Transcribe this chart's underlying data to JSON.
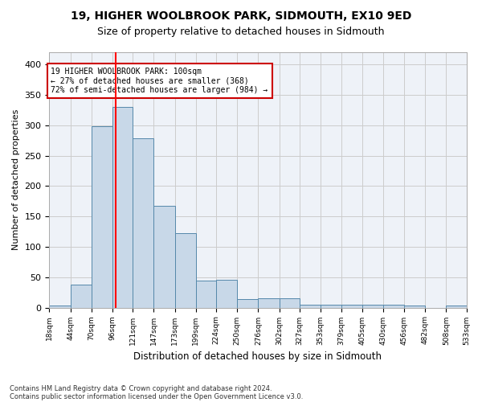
{
  "title1": "19, HIGHER WOOLBROOK PARK, SIDMOUTH, EX10 9ED",
  "title2": "Size of property relative to detached houses in Sidmouth",
  "xlabel": "Distribution of detached houses by size in Sidmouth",
  "ylabel": "Number of detached properties",
  "bar_color": "#c8d8e8",
  "bar_edge_color": "#5588aa",
  "grid_color": "#cccccc",
  "bg_color": "#eef2f8",
  "red_line_x": 100,
  "annotation_text": "19 HIGHER WOOLBROOK PARK: 100sqm\n← 27% of detached houses are smaller (368)\n72% of semi-detached houses are larger (984) →",
  "annotation_box_color": "#ffffff",
  "annotation_box_edge": "#cc0000",
  "footnote1": "Contains HM Land Registry data © Crown copyright and database right 2024.",
  "footnote2": "Contains public sector information licensed under the Open Government Licence v3.0.",
  "bin_edges": [
    18,
    44,
    70,
    96,
    121,
    147,
    173,
    199,
    224,
    250,
    276,
    302,
    327,
    353,
    379,
    405,
    430,
    456,
    482,
    508,
    533
  ],
  "bar_heights": [
    4,
    38,
    298,
    330,
    278,
    167,
    123,
    44,
    46,
    14,
    15,
    15,
    5,
    5,
    5,
    5,
    5,
    3,
    0,
    3
  ],
  "xtick_labels": [
    "18sqm",
    "44sqm",
    "70sqm",
    "96sqm",
    "121sqm",
    "147sqm",
    "173sqm",
    "199sqm",
    "224sqm",
    "250sqm",
    "276sqm",
    "302sqm",
    "327sqm",
    "353sqm",
    "379sqm",
    "405sqm",
    "430sqm",
    "456sqm",
    "482sqm",
    "508sqm",
    "533sqm"
  ],
  "ylim": [
    0,
    420
  ],
  "yticks": [
    0,
    50,
    100,
    150,
    200,
    250,
    300,
    350,
    400
  ]
}
